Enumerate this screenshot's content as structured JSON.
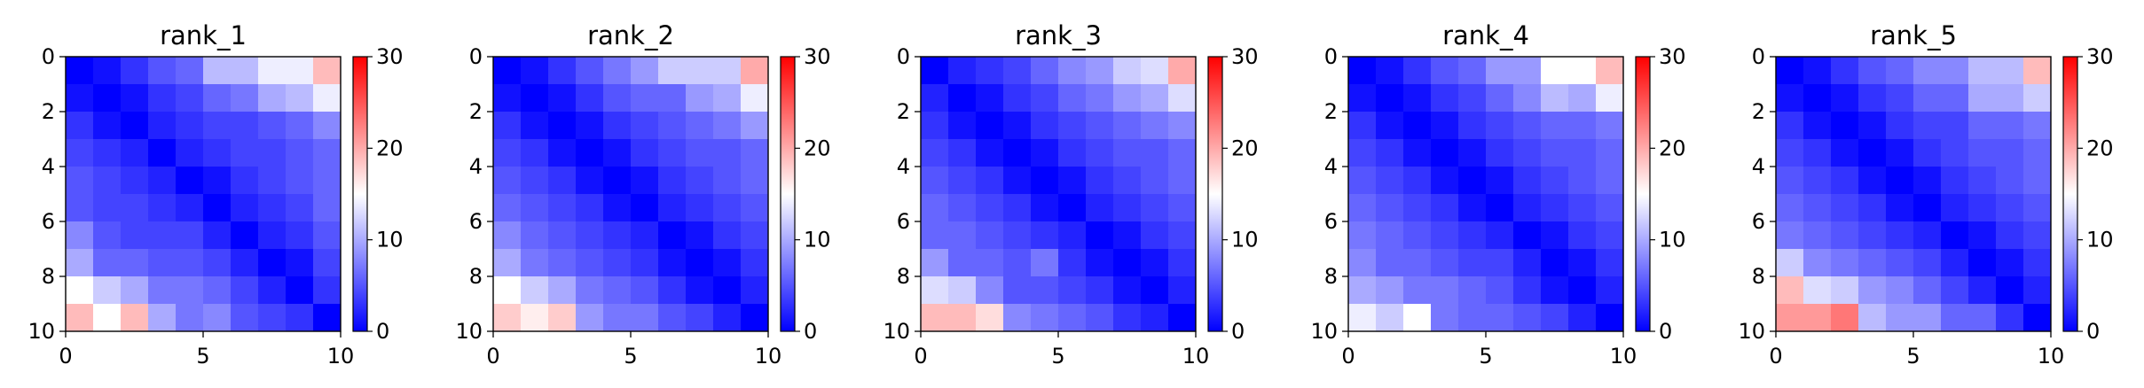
{
  "colors": {
    "low": "#0000ff",
    "mid": "#ffffff",
    "high": "#ff0000"
  },
  "chart_data": [
    {
      "type": "heatmap",
      "title": "rank_1",
      "xlabel": "",
      "ylabel": "",
      "xlim": [
        0,
        10
      ],
      "ylim": [
        10,
        0
      ],
      "x_ticks": [
        "0",
        "5",
        "10"
      ],
      "y_ticks": [
        "0",
        "2",
        "4",
        "6",
        "8",
        "10"
      ],
      "colorbar": {
        "range": [
          0,
          30
        ],
        "ticks": [
          "0",
          "10",
          "20",
          "30"
        ],
        "colormap": "bwr"
      },
      "values": [
        [
          0,
          1,
          3,
          5,
          6,
          11,
          11,
          14,
          14,
          19
        ],
        [
          1,
          0,
          1,
          3,
          4,
          6,
          7,
          10,
          11,
          14
        ],
        [
          3,
          1,
          0,
          2,
          3,
          4,
          4,
          5,
          6,
          8
        ],
        [
          4,
          3,
          2,
          0,
          2,
          3,
          4,
          4,
          5,
          6
        ],
        [
          5,
          4,
          3,
          2,
          0,
          1,
          3,
          4,
          5,
          6
        ],
        [
          5,
          4,
          4,
          3,
          2,
          0,
          2,
          3,
          4,
          6
        ],
        [
          8,
          5,
          4,
          4,
          4,
          2,
          0,
          2,
          3,
          5
        ],
        [
          10,
          6,
          6,
          5,
          5,
          4,
          2,
          0,
          1,
          4
        ],
        [
          15,
          12,
          10,
          7,
          7,
          6,
          4,
          2,
          0,
          3
        ],
        [
          19,
          15,
          19,
          10,
          7,
          8,
          5,
          4,
          3,
          0
        ]
      ]
    },
    {
      "type": "heatmap",
      "title": "rank_2",
      "xlabel": "",
      "ylabel": "",
      "xlim": [
        0,
        10
      ],
      "ylim": [
        10,
        0
      ],
      "x_ticks": [
        "0",
        "5",
        "10"
      ],
      "y_ticks": [
        "0",
        "2",
        "4",
        "6",
        "8",
        "10"
      ],
      "colorbar": {
        "range": [
          0,
          30
        ],
        "ticks": [
          "0",
          "10",
          "20",
          "30"
        ],
        "colormap": "bwr"
      },
      "values": [
        [
          0,
          1,
          3,
          5,
          7,
          9,
          12,
          12,
          12,
          20
        ],
        [
          1,
          0,
          1,
          3,
          5,
          6,
          6,
          9,
          10,
          14
        ],
        [
          3,
          1,
          0,
          1,
          3,
          4,
          5,
          6,
          7,
          9
        ],
        [
          4,
          3,
          1,
          0,
          1,
          3,
          4,
          5,
          5,
          6
        ],
        [
          5,
          4,
          3,
          1,
          0,
          1,
          3,
          4,
          5,
          6
        ],
        [
          6,
          5,
          4,
          3,
          1,
          0,
          2,
          3,
          4,
          5
        ],
        [
          8,
          6,
          5,
          4,
          3,
          2,
          0,
          1,
          3,
          4
        ],
        [
          10,
          7,
          6,
          5,
          4,
          3,
          1,
          0,
          1,
          3
        ],
        [
          15,
          12,
          10,
          7,
          6,
          5,
          3,
          1,
          0,
          2
        ],
        [
          18,
          16,
          18,
          9,
          7,
          7,
          5,
          4,
          2,
          0
        ]
      ]
    },
    {
      "type": "heatmap",
      "title": "rank_3",
      "xlabel": "",
      "ylabel": "",
      "xlim": [
        0,
        10
      ],
      "ylim": [
        10,
        0
      ],
      "x_ticks": [
        "0",
        "5",
        "10"
      ],
      "y_ticks": [
        "0",
        "2",
        "4",
        "6",
        "8",
        "10"
      ],
      "colorbar": {
        "range": [
          0,
          30
        ],
        "ticks": [
          "0",
          "10",
          "20",
          "30"
        ],
        "colormap": "bwr"
      },
      "values": [
        [
          0,
          2,
          3,
          4,
          6,
          8,
          9,
          12,
          13,
          20
        ],
        [
          2,
          0,
          1,
          3,
          4,
          6,
          7,
          9,
          10,
          13
        ],
        [
          3,
          1,
          0,
          1,
          3,
          4,
          5,
          6,
          7,
          8
        ],
        [
          4,
          3,
          1,
          0,
          1,
          3,
          4,
          5,
          5,
          6
        ],
        [
          5,
          4,
          3,
          1,
          0,
          1,
          3,
          4,
          5,
          6
        ],
        [
          6,
          5,
          4,
          3,
          1,
          0,
          2,
          3,
          4,
          5
        ],
        [
          6,
          6,
          5,
          4,
          3,
          2,
          0,
          1,
          3,
          4
        ],
        [
          9,
          6,
          6,
          5,
          7,
          3,
          1,
          0,
          1,
          3
        ],
        [
          13,
          12,
          8,
          5,
          5,
          4,
          3,
          1,
          0,
          2
        ],
        [
          19,
          19,
          17,
          8,
          7,
          6,
          5,
          3,
          2,
          0
        ]
      ]
    },
    {
      "type": "heatmap",
      "title": "rank_4",
      "xlabel": "",
      "ylabel": "",
      "xlim": [
        0,
        10
      ],
      "ylim": [
        10,
        0
      ],
      "x_ticks": [
        "0",
        "5",
        "10"
      ],
      "y_ticks": [
        "0",
        "2",
        "4",
        "6",
        "8",
        "10"
      ],
      "colorbar": {
        "range": [
          0,
          30
        ],
        "ticks": [
          "0",
          "10",
          "20",
          "30"
        ],
        "colormap": "bwr"
      },
      "values": [
        [
          0,
          1,
          3,
          5,
          6,
          9,
          9,
          15,
          15,
          19
        ],
        [
          1,
          0,
          1,
          3,
          4,
          6,
          8,
          11,
          10,
          14
        ],
        [
          3,
          1,
          0,
          1,
          3,
          4,
          5,
          6,
          6,
          7
        ],
        [
          4,
          3,
          1,
          0,
          1,
          3,
          4,
          5,
          5,
          6
        ],
        [
          5,
          4,
          3,
          1,
          0,
          1,
          3,
          4,
          5,
          6
        ],
        [
          6,
          5,
          4,
          3,
          1,
          0,
          2,
          3,
          4,
          5
        ],
        [
          7,
          6,
          5,
          4,
          3,
          2,
          0,
          1,
          3,
          4
        ],
        [
          8,
          6,
          6,
          5,
          4,
          4,
          2,
          0,
          1,
          3
        ],
        [
          10,
          9,
          7,
          7,
          6,
          5,
          3,
          1,
          0,
          2
        ],
        [
          14,
          12,
          15,
          7,
          6,
          6,
          5,
          4,
          2,
          0
        ]
      ]
    },
    {
      "type": "heatmap",
      "title": "rank_5",
      "xlabel": "",
      "ylabel": "",
      "xlim": [
        0,
        10
      ],
      "ylim": [
        10,
        0
      ],
      "x_ticks": [
        "0",
        "5",
        "10"
      ],
      "y_ticks": [
        "0",
        "2",
        "4",
        "6",
        "8",
        "10"
      ],
      "colorbar": {
        "range": [
          0,
          30
        ],
        "ticks": [
          "0",
          "10",
          "20",
          "30"
        ],
        "colormap": "bwr"
      },
      "values": [
        [
          0,
          1,
          3,
          5,
          6,
          8,
          8,
          11,
          11,
          19
        ],
        [
          1,
          0,
          1,
          3,
          4,
          6,
          6,
          10,
          10,
          12
        ],
        [
          3,
          1,
          0,
          1,
          3,
          4,
          4,
          6,
          6,
          7
        ],
        [
          4,
          3,
          1,
          0,
          1,
          3,
          4,
          5,
          5,
          6
        ],
        [
          5,
          4,
          3,
          1,
          0,
          1,
          3,
          4,
          5,
          6
        ],
        [
          6,
          5,
          4,
          3,
          1,
          0,
          2,
          3,
          4,
          5
        ],
        [
          7,
          6,
          5,
          4,
          3,
          2,
          0,
          1,
          3,
          4
        ],
        [
          12,
          8,
          7,
          6,
          5,
          4,
          2,
          0,
          1,
          3
        ],
        [
          19,
          13,
          12,
          9,
          8,
          6,
          4,
          2,
          0,
          2
        ],
        [
          21,
          21,
          23,
          11,
          9,
          9,
          6,
          6,
          3,
          0
        ]
      ]
    }
  ]
}
